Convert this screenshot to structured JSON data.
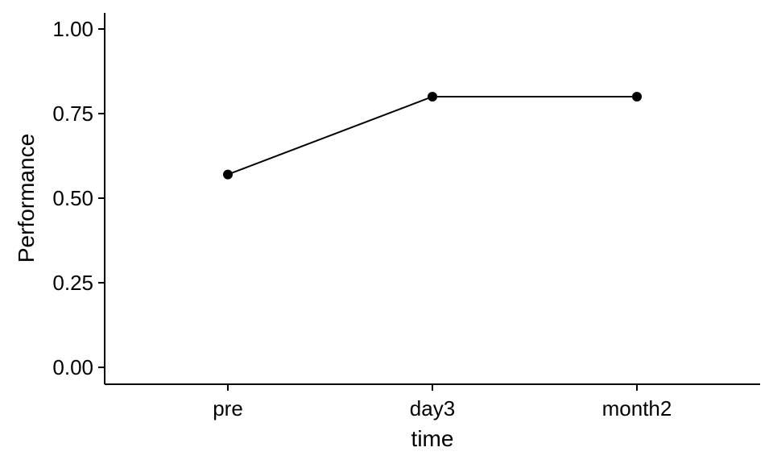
{
  "chart_data": {
    "type": "line",
    "categories": [
      "pre",
      "day3",
      "month2"
    ],
    "values": [
      0.57,
      0.8,
      0.8
    ],
    "title": "",
    "xlabel": "time",
    "ylabel": "Performance",
    "ylim": [
      0,
      1
    ],
    "y_ticks": [
      "0.00",
      "0.25",
      "0.50",
      "0.75",
      "1.00"
    ],
    "grid": false,
    "line_color": "#000000",
    "point_color": "#000000"
  }
}
